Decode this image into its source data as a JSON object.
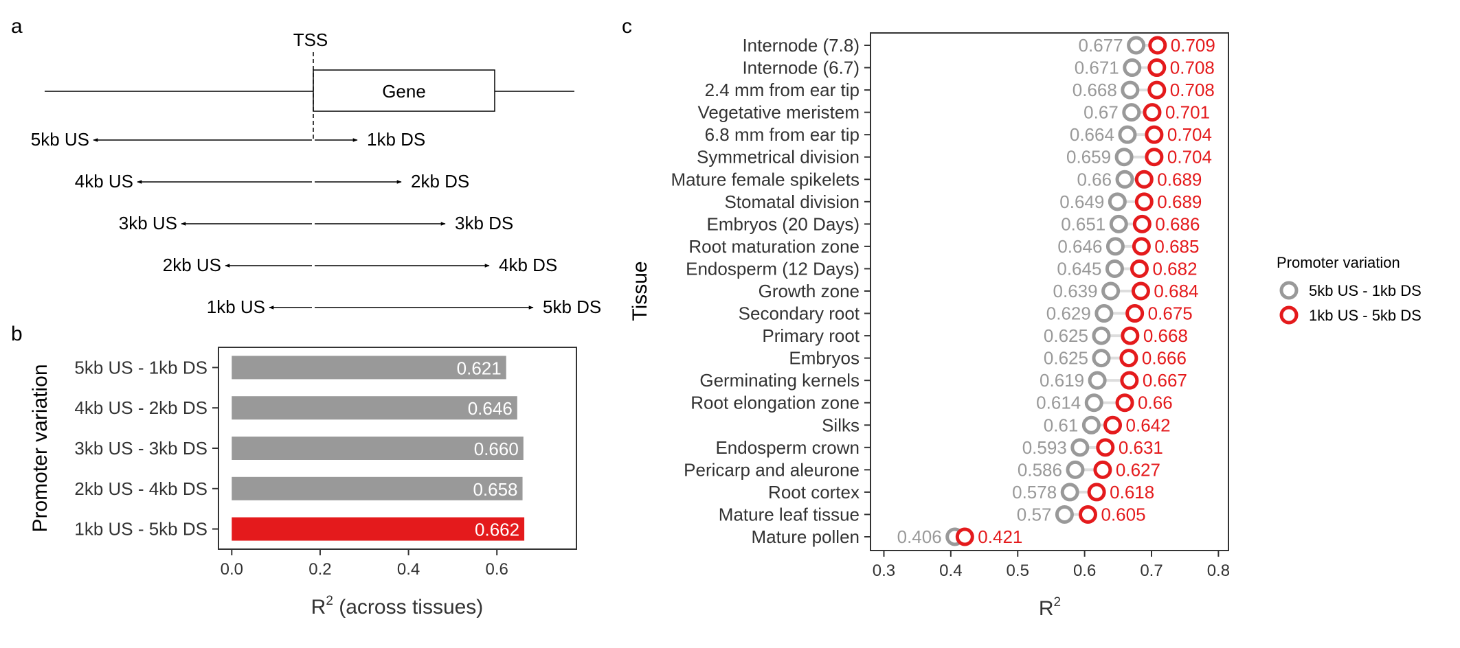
{
  "panel_labels": {
    "a": "a",
    "b": "b",
    "c": "c"
  },
  "schematic": {
    "tss_label": "TSS",
    "gene_label": "Gene",
    "windows": [
      {
        "us": "5kb US",
        "ds": "1kb DS",
        "us_kb": 5,
        "ds_kb": 1
      },
      {
        "us": "4kb US",
        "ds": "2kb DS",
        "us_kb": 4,
        "ds_kb": 2
      },
      {
        "us": "3kb US",
        "ds": "3kb DS",
        "us_kb": 3,
        "ds_kb": 3
      },
      {
        "us": "2kb US",
        "ds": "4kb DS",
        "us_kb": 2,
        "ds_kb": 4
      },
      {
        "us": "1kb US",
        "ds": "5kb DS",
        "us_kb": 1,
        "ds_kb": 5
      }
    ]
  },
  "colors": {
    "grey": "#999999",
    "red": "#e41a1c",
    "axis": "#333333",
    "label_grey": "#999999"
  },
  "chart_data": [
    {
      "type": "bar",
      "orientation": "horizontal",
      "categories": [
        "5kb US - 1kb DS",
        "4kb US - 2kb DS",
        "3kb US - 3kb DS",
        "2kb US - 4kb DS",
        "1kb US - 5kb DS"
      ],
      "values": [
        0.621,
        0.646,
        0.66,
        0.658,
        0.662
      ],
      "value_labels": [
        "0.621",
        "0.646",
        "0.660",
        "0.658",
        "0.662"
      ],
      "highlight": "1kb US - 5kb DS",
      "xlabel_main": "R",
      "xlabel_sup": "2",
      "xlabel_rest": " (across tissues)",
      "ylabel": "Promoter variation",
      "xlim": [
        -0.03,
        0.78
      ],
      "xticks": [
        0.0,
        0.2,
        0.4,
        0.6
      ],
      "xtick_labels": [
        "0.0",
        "0.2",
        "0.4",
        "0.6"
      ]
    },
    {
      "type": "scatter",
      "orientation": "horizontal",
      "categories": [
        "Internode (7.8)",
        "Internode (6.7)",
        "2.4 mm from ear tip",
        "Vegetative meristem",
        "6.8 mm from ear tip",
        "Symmetrical division",
        "Mature female spikelets",
        "Stomatal division",
        "Embryos (20 Days)",
        "Root maturation zone",
        "Endosperm (12 Days)",
        "Growth zone",
        "Secondary root",
        "Primary root",
        "Embryos",
        "Germinating kernels",
        "Root elongation zone",
        "Silks",
        "Endosperm crown",
        "Pericarp and aleurone",
        "Root cortex",
        "Mature leaf tissue",
        "Mature pollen"
      ],
      "series": [
        {
          "name": "5kb US - 1kb DS",
          "color": "#999999",
          "values": [
            0.677,
            0.671,
            0.668,
            0.67,
            0.664,
            0.659,
            0.66,
            0.649,
            0.651,
            0.646,
            0.645,
            0.639,
            0.629,
            0.625,
            0.625,
            0.619,
            0.614,
            0.61,
            0.593,
            0.586,
            0.578,
            0.57,
            0.406
          ],
          "labels": [
            "0.677",
            "0.671",
            "0.668",
            "0.67",
            "0.664",
            "0.659",
            "0.66",
            "0.649",
            "0.651",
            "0.646",
            "0.645",
            "0.639",
            "0.629",
            "0.625",
            "0.625",
            "0.619",
            "0.614",
            "0.61",
            "0.593",
            "0.586",
            "0.578",
            "0.57",
            "0.406"
          ]
        },
        {
          "name": "1kb US - 5kb DS",
          "color": "#e41a1c",
          "values": [
            0.709,
            0.708,
            0.708,
            0.701,
            0.704,
            0.704,
            0.689,
            0.689,
            0.686,
            0.685,
            0.682,
            0.684,
            0.675,
            0.668,
            0.666,
            0.667,
            0.66,
            0.642,
            0.631,
            0.627,
            0.618,
            0.605,
            0.421
          ],
          "labels": [
            "0.709",
            "0.708",
            "0.708",
            "0.701",
            "0.704",
            "0.704",
            "0.689",
            "0.689",
            "0.686",
            "0.685",
            "0.682",
            "0.684",
            "0.675",
            "0.668",
            "0.666",
            "0.667",
            "0.66",
            "0.642",
            "0.631",
            "0.627",
            "0.618",
            "0.605",
            "0.421"
          ]
        }
      ],
      "xlabel_main": "R",
      "xlabel_sup": "2",
      "ylabel": "Tissue",
      "xlim": [
        0.28,
        0.815
      ],
      "xticks": [
        0.3,
        0.4,
        0.5,
        0.6,
        0.7,
        0.8
      ],
      "xtick_labels": [
        "0.3",
        "0.4",
        "0.5",
        "0.6",
        "0.7",
        "0.8"
      ],
      "legend": {
        "title": "Promoter variation",
        "position": "right"
      }
    }
  ]
}
